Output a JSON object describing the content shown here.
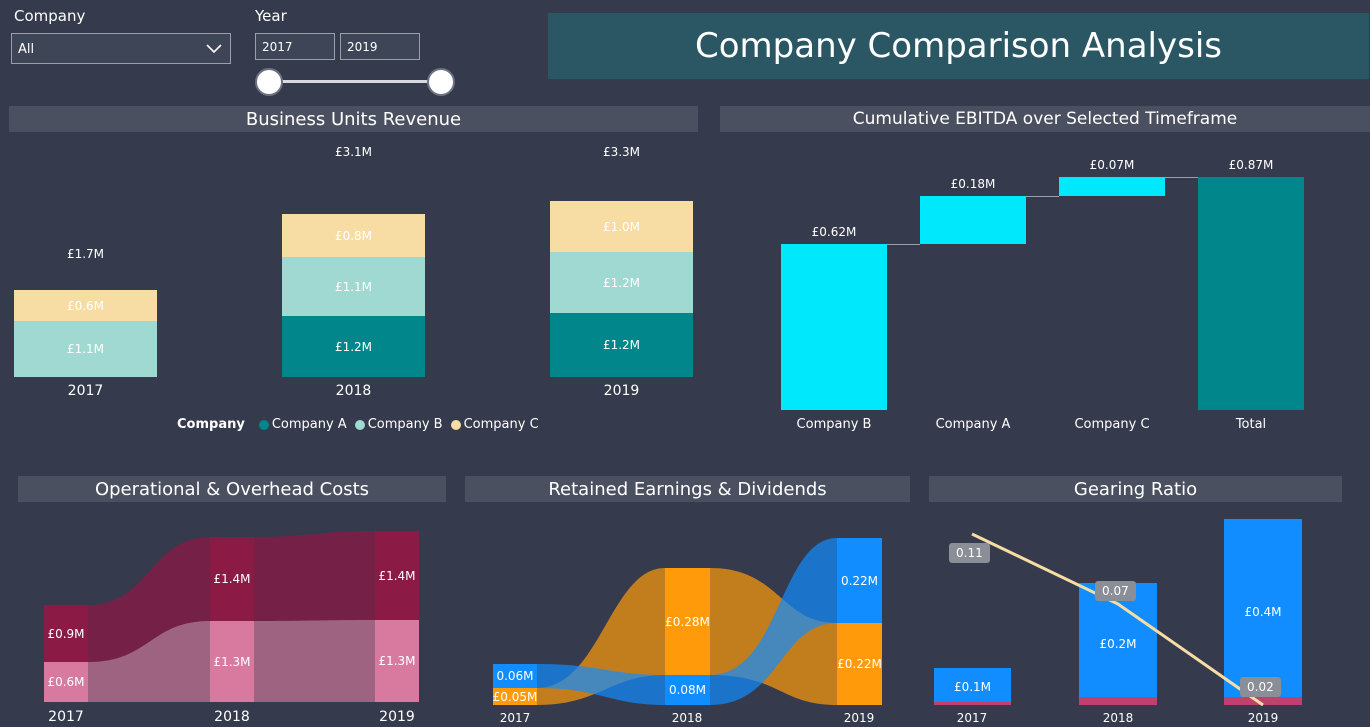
{
  "filters": {
    "company": {
      "label": "Company",
      "value": "All"
    },
    "year": {
      "label": "Year",
      "from": "2017",
      "to": "2019"
    }
  },
  "title": "Company Comparison Analysis",
  "colors": {
    "company_a": "#00868b",
    "company_b": "#a0d9d2",
    "company_c": "#f7dca4",
    "ebitda_positive": "#00e8fc",
    "ebitda_total": "#00868b",
    "operational": "#8b1a45",
    "overhead": "#d87aa0",
    "retained": "#ff9a0a",
    "dividends": "#118dff",
    "gearing_bar": "#118dff",
    "gearing_line": "#f7dca4"
  },
  "business_units_revenue": {
    "title": "Business Units Revenue",
    "legend_title": "Company",
    "legend": [
      "Company A",
      "Company B",
      "Company C"
    ],
    "years": [
      {
        "year": "2017",
        "total": "£1.7M",
        "segments": [
          "",
          "£1.1M",
          "£0.6M"
        ]
      },
      {
        "year": "2018",
        "total": "£3.1M",
        "segments": [
          "£1.2M",
          "£1.1M",
          "£0.8M"
        ]
      },
      {
        "year": "2019",
        "total": "£3.3M",
        "segments": [
          "£1.2M",
          "£1.2M",
          "£1.0M"
        ]
      }
    ]
  },
  "ebitda": {
    "title": "Cumulative EBITDA over Selected Timeframe",
    "bars": [
      {
        "category": "Company B",
        "label": "£0.62M"
      },
      {
        "category": "Company A",
        "label": "£0.18M"
      },
      {
        "category": "Company C",
        "label": "£0.07M"
      },
      {
        "category": "Total",
        "label": "£0.87M"
      }
    ]
  },
  "costs": {
    "title": "Operational & Overhead Costs",
    "years": [
      {
        "year": "2017",
        "top": "£0.9M",
        "bottom": "£0.6M"
      },
      {
        "year": "2018",
        "top": "£1.4M",
        "bottom": "£1.3M"
      },
      {
        "year": "2019",
        "top": "£1.4M",
        "bottom": "£1.3M"
      }
    ]
  },
  "retained": {
    "title": "Retained Earnings & Dividends",
    "years": [
      {
        "year": "2017",
        "blue": "0.06M",
        "orange": "£0.05M"
      },
      {
        "year": "2018",
        "blue": "0.08M",
        "orange": "£0.28M"
      },
      {
        "year": "2019",
        "blue": "0.22M",
        "orange": "£0.22M"
      }
    ]
  },
  "gearing": {
    "title": "Gearing Ratio",
    "years": [
      {
        "year": "2017",
        "bar": "£0.1M",
        "ratio": "0.11"
      },
      {
        "year": "2018",
        "bar": "£0.2M",
        "ratio": "0.07"
      },
      {
        "year": "2019",
        "bar": "£0.4M",
        "ratio": "0.02"
      }
    ]
  },
  "chart_data": [
    {
      "type": "bar",
      "title": "Business Units Revenue",
      "stacked": true,
      "categories": [
        "2017",
        "2018",
        "2019"
      ],
      "series": [
        {
          "name": "Company A",
          "values": [
            0,
            1.2,
            1.2
          ]
        },
        {
          "name": "Company B",
          "values": [
            1.1,
            1.1,
            1.2
          ]
        },
        {
          "name": "Company C",
          "values": [
            0.6,
            0.8,
            1.0
          ]
        }
      ],
      "totals": [
        1.7,
        3.1,
        3.3
      ],
      "unit": "£M",
      "legend": "bottom"
    },
    {
      "type": "bar",
      "title": "Cumulative EBITDA over Selected Timeframe",
      "waterfall": true,
      "categories": [
        "Company B",
        "Company A",
        "Company C",
        "Total"
      ],
      "values": [
        0.62,
        0.18,
        0.07,
        0.87
      ],
      "unit": "£M"
    },
    {
      "type": "area",
      "title": "Operational & Overhead Costs",
      "stacked": true,
      "categories": [
        "2017",
        "2018",
        "2019"
      ],
      "series": [
        {
          "values": [
            0.6,
            1.3,
            1.3
          ]
        },
        {
          "values": [
            0.9,
            1.4,
            1.4
          ]
        }
      ],
      "unit": "£M"
    },
    {
      "type": "area",
      "title": "Retained Earnings & Dividends",
      "categories": [
        "2017",
        "2018",
        "2019"
      ],
      "series": [
        {
          "values": [
            0.06,
            0.08,
            0.22
          ]
        },
        {
          "values": [
            0.05,
            0.28,
            0.22
          ]
        }
      ],
      "unit": "£M"
    },
    {
      "type": "bar",
      "title": "Gearing Ratio",
      "categories": [
        "2017",
        "2018",
        "2019"
      ],
      "series": [
        {
          "values": [
            0.1,
            0.2,
            0.4
          ]
        }
      ],
      "line": {
        "values": [
          0.11,
          0.07,
          0.02
        ]
      },
      "unit": "£M"
    }
  ]
}
